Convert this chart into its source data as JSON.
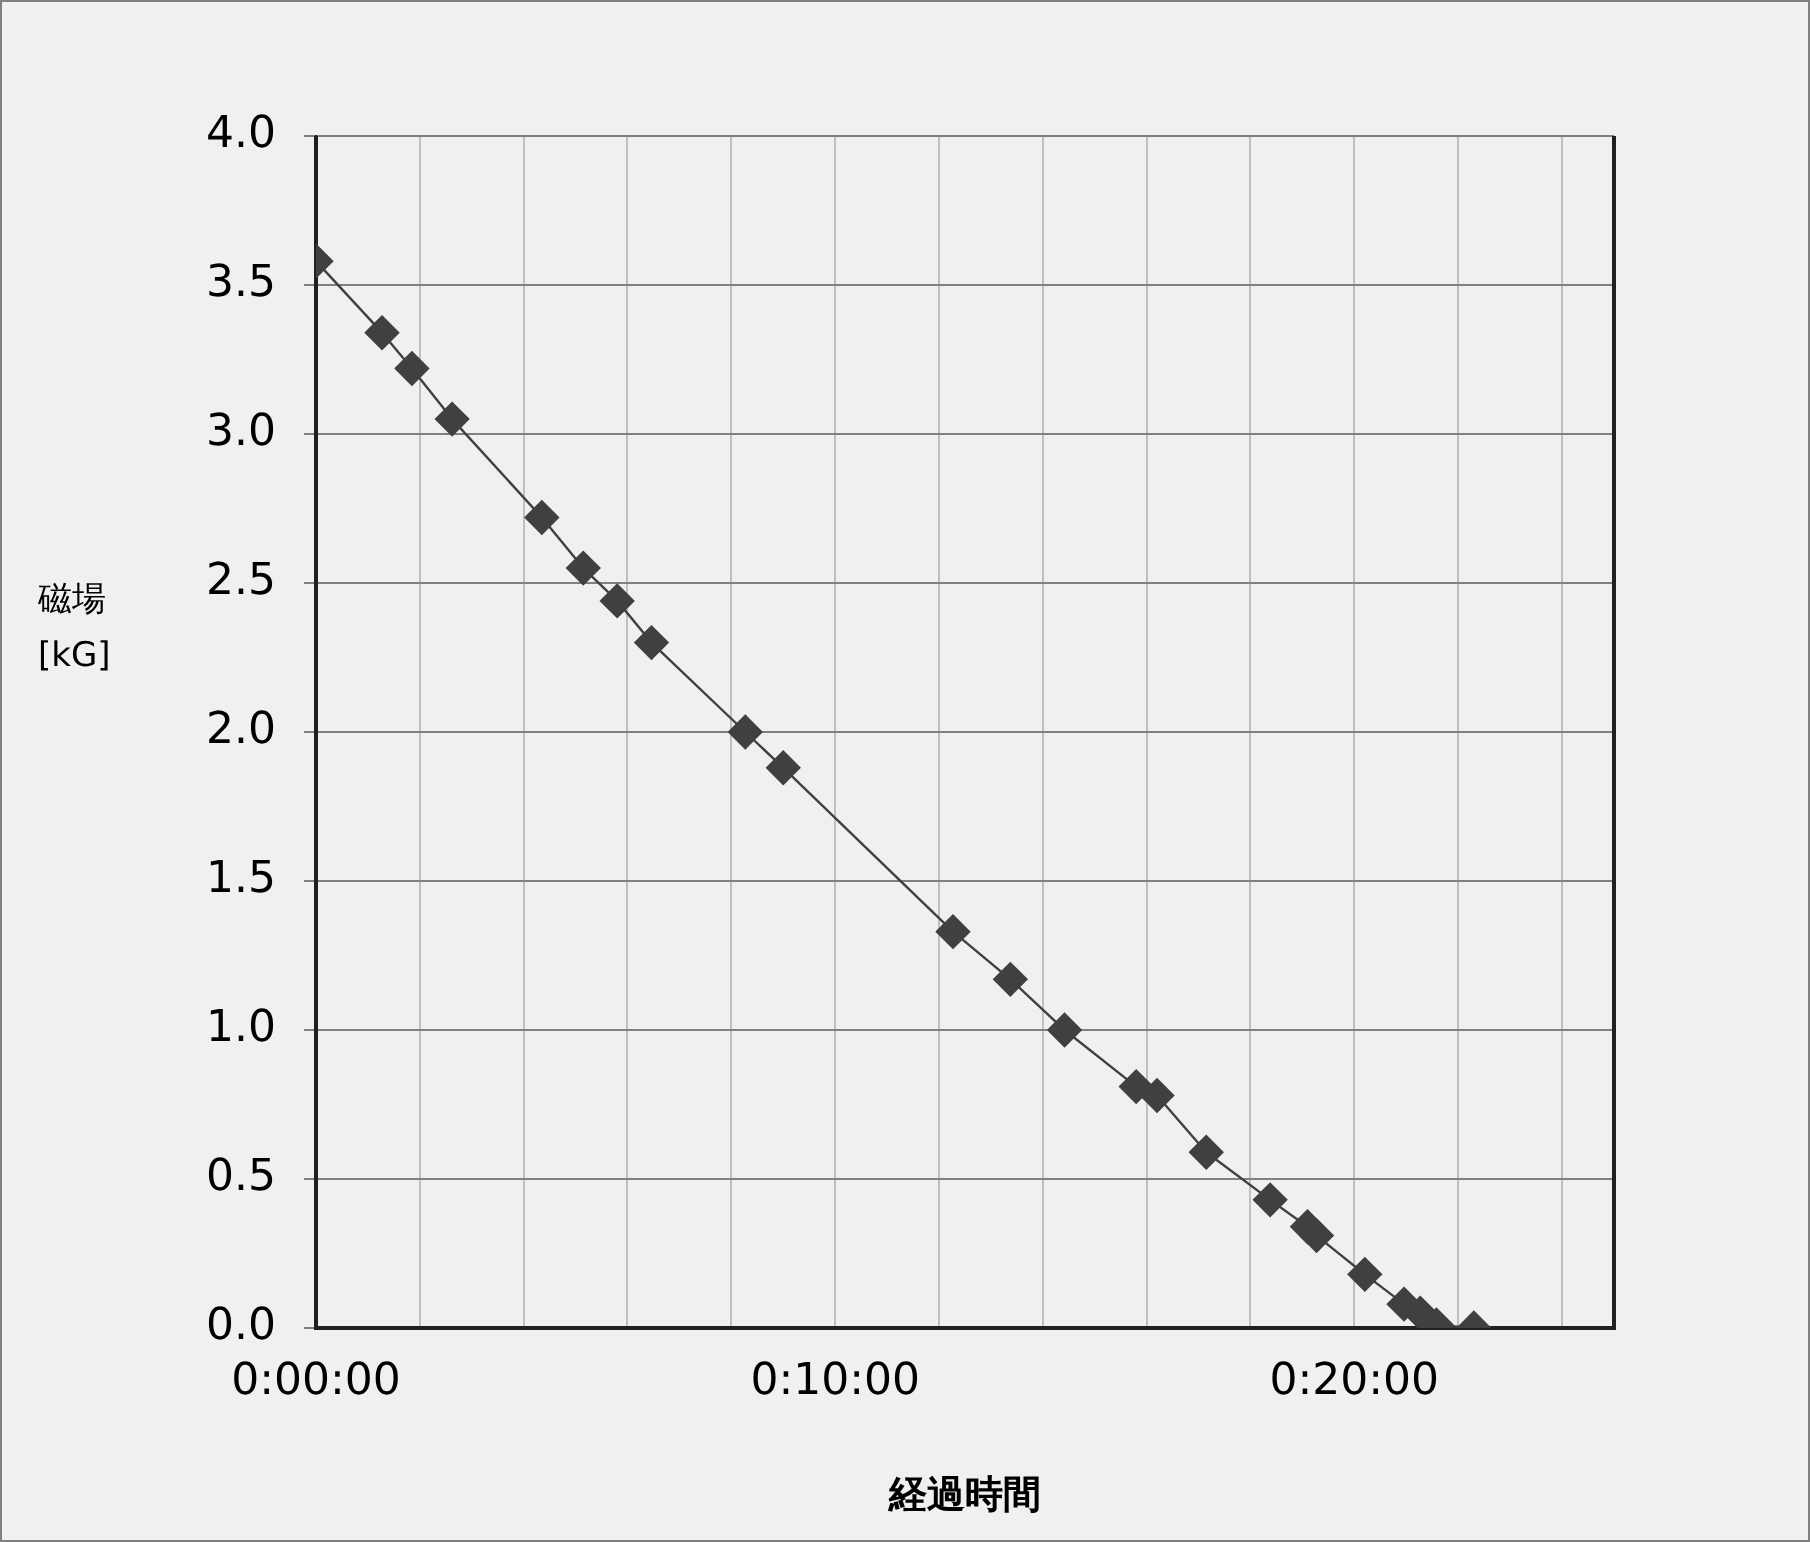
{
  "chart_data": {
    "type": "line",
    "xlabel": "経過時間",
    "ylabel": "磁場 [kG]",
    "x": [
      0,
      0.0212,
      0.0308,
      0.0437,
      0.0725,
      0.0858,
      0.0967,
      0.1077,
      0.1378,
      0.15,
      0.2045,
      0.2229,
      0.2403,
      0.2633,
      0.27,
      0.2858,
      0.3063,
      0.3183,
      0.3212,
      0.3367,
      0.3493,
      0.3545,
      0.3597,
      0.3717
    ],
    "series": [
      {
        "color": "#404040",
        "values": [
          3.58,
          3.34,
          3.22,
          3.05,
          2.72,
          2.55,
          2.44,
          2.3,
          2.0,
          1.88,
          1.33,
          1.17,
          1.0,
          0.81,
          0.78,
          0.59,
          0.43,
          0.34,
          0.31,
          0.18,
          0.08,
          0.05,
          0.01,
          0.0
        ]
      }
    ],
    "xlim": [
      0,
      0.4167
    ],
    "xticks": [
      {
        "value": 0,
        "label": "0:00:00"
      },
      {
        "value": 0.0333,
        "label": null
      },
      {
        "value": 0.0667,
        "label": null
      },
      {
        "value": 0.1,
        "label": null
      },
      {
        "value": 0.1333,
        "label": null
      },
      {
        "value": 0.1667,
        "label": "0:10:00"
      },
      {
        "value": 0.2,
        "label": null
      },
      {
        "value": 0.2333,
        "label": null
      },
      {
        "value": 0.2667,
        "label": null
      },
      {
        "value": 0.3,
        "label": null
      },
      {
        "value": 0.3333,
        "label": "0:20:00"
      },
      {
        "value": 0.3667,
        "label": null
      },
      {
        "value": 0.4,
        "label": null
      }
    ],
    "ylim": [
      0,
      4
    ],
    "yticks": [
      {
        "value": 0,
        "label": "0.0"
      },
      {
        "value": 0.5,
        "label": "0.5"
      },
      {
        "value": 1,
        "label": "1.0"
      },
      {
        "value": 1.5,
        "label": "1.5"
      },
      {
        "value": 2,
        "label": "2.0"
      },
      {
        "value": 2.5,
        "label": "2.5"
      },
      {
        "value": 3,
        "label": "3.0"
      },
      {
        "value": 3.5,
        "label": "3.5"
      },
      {
        "value": 4,
        "label": "4.0"
      }
    ],
    "grid": true,
    "legend": false,
    "marker": "diamond",
    "line_style": "solid"
  }
}
